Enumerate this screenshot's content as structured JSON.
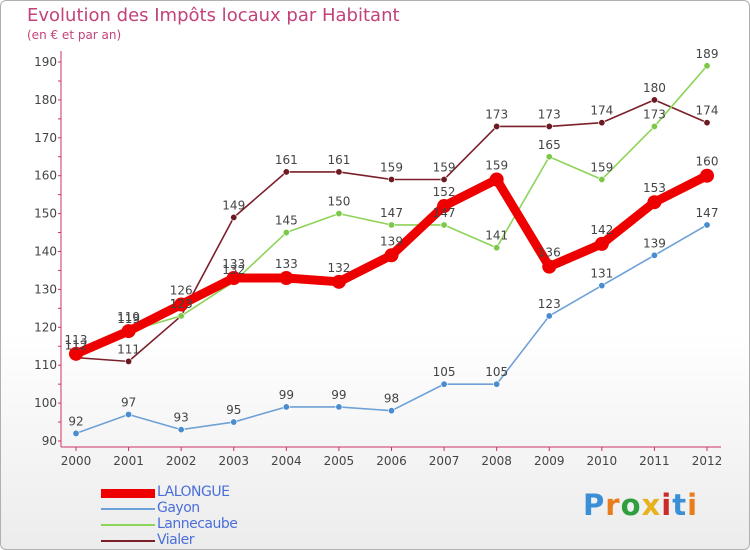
{
  "chart_title": "Evolution des Impôts locaux par Habitant",
  "chart_subtitle": "(en € et par an)",
  "brand": {
    "letters": [
      "P",
      "r",
      "o",
      "x",
      "i",
      "t",
      "i"
    ],
    "colors": [
      "#3a8fd6",
      "#e87d1e",
      "#2e9e3e",
      "#e8b21e",
      "#cc2a2a",
      "#3a8fd6",
      "#e87d1e"
    ]
  },
  "chart_data": {
    "type": "line",
    "title": "Evolution des Impôts locaux par Habitant",
    "subtitle": "(en € et par an)",
    "xlabel": "",
    "ylabel": "",
    "x": [
      "2000",
      "2001",
      "2002",
      "2003",
      "2004",
      "2005",
      "2006",
      "2007",
      "2008",
      "2009",
      "2010",
      "2011",
      "2012"
    ],
    "ylim": [
      90,
      190
    ],
    "yticks": [
      90,
      100,
      110,
      120,
      130,
      140,
      150,
      160,
      170,
      180,
      190
    ],
    "grid": false,
    "series": [
      {
        "name": "Vialer",
        "color": "#7b1f2a",
        "dot": "#6b1a22",
        "emphasis": false,
        "values": [
          112,
          111,
          123,
          149,
          161,
          161,
          159,
          159,
          173,
          173,
          174,
          180,
          174
        ]
      },
      {
        "name": "Lannecaube",
        "color": "#8ed35a",
        "dot": "#7cc94a",
        "emphasis": false,
        "values": [
          112,
          119,
          123,
          132,
          145,
          150,
          147,
          147,
          141,
          165,
          159,
          173,
          189
        ]
      },
      {
        "name": "Gayon",
        "color": "#6da0d6",
        "dot": "#4a8cd0",
        "emphasis": false,
        "values": [
          92,
          97,
          93,
          95,
          99,
          99,
          98,
          105,
          105,
          123,
          131,
          139,
          147
        ]
      },
      {
        "name": "LALONGUE",
        "color": "#ee0000",
        "dot": "#ee0000",
        "emphasis": true,
        "values": [
          113,
          119,
          126,
          133,
          133,
          132,
          139,
          152,
          159,
          136,
          142,
          153,
          160
        ]
      }
    ],
    "legend": [
      "LALONGUE",
      "Gayon",
      "Lannecaube",
      "Vialer"
    ]
  }
}
